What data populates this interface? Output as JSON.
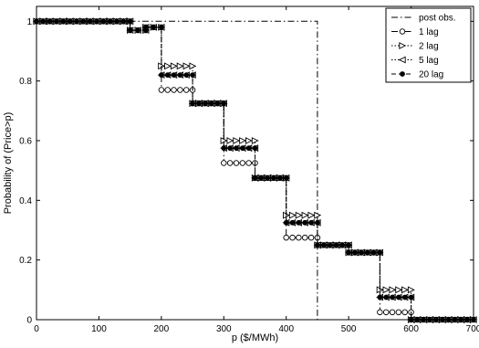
{
  "chart_data": {
    "type": "line",
    "title": "",
    "xlabel": "p ($/MWh)",
    "ylabel": "Probability of (Price>p)",
    "xlim": [
      0,
      700
    ],
    "ylim": [
      0,
      1.05
    ],
    "xticks": [
      0,
      100,
      200,
      300,
      400,
      500,
      600,
      700
    ],
    "yticks": [
      0,
      0.2,
      0.4,
      0.6,
      0.8,
      1
    ],
    "xtick_labels": [
      "0",
      "100",
      "200",
      "300",
      "400",
      "500",
      "600",
      "700"
    ],
    "ytick_labels": [
      "0",
      "0.2",
      "0.4",
      "0.6",
      "0.8",
      "1"
    ],
    "grid": false,
    "legend_position": "top-right",
    "series": [
      {
        "name": "post obs.",
        "style": "dash-dot",
        "marker": "none",
        "steps": [
          {
            "x0": 0,
            "x1": 450,
            "y": 1.0
          },
          {
            "x0": 450,
            "x1": 700,
            "y": 0.0
          }
        ]
      },
      {
        "name": "1 lag",
        "style": "dash-dot",
        "marker": "circle",
        "steps": [
          {
            "x0": 0,
            "x1": 150,
            "y": 1.0
          },
          {
            "x0": 150,
            "x1": 175,
            "y": 0.97
          },
          {
            "x0": 175,
            "x1": 200,
            "y": 0.98
          },
          {
            "x0": 200,
            "x1": 250,
            "y": 0.77
          },
          {
            "x0": 250,
            "x1": 300,
            "y": 0.725
          },
          {
            "x0": 300,
            "x1": 350,
            "y": 0.525
          },
          {
            "x0": 350,
            "x1": 400,
            "y": 0.475
          },
          {
            "x0": 400,
            "x1": 450,
            "y": 0.275
          },
          {
            "x0": 450,
            "x1": 500,
            "y": 0.25
          },
          {
            "x0": 500,
            "x1": 550,
            "y": 0.225
          },
          {
            "x0": 550,
            "x1": 600,
            "y": 0.025
          },
          {
            "x0": 600,
            "x1": 700,
            "y": 0.0
          }
        ]
      },
      {
        "name": "2 lag",
        "style": "dotted",
        "marker": "triangle-right",
        "steps": [
          {
            "x0": 0,
            "x1": 150,
            "y": 1.0
          },
          {
            "x0": 150,
            "x1": 175,
            "y": 0.97
          },
          {
            "x0": 175,
            "x1": 200,
            "y": 0.98
          },
          {
            "x0": 200,
            "x1": 250,
            "y": 0.85
          },
          {
            "x0": 250,
            "x1": 300,
            "y": 0.725
          },
          {
            "x0": 300,
            "x1": 350,
            "y": 0.6
          },
          {
            "x0": 350,
            "x1": 400,
            "y": 0.475
          },
          {
            "x0": 400,
            "x1": 450,
            "y": 0.35
          },
          {
            "x0": 450,
            "x1": 500,
            "y": 0.25
          },
          {
            "x0": 500,
            "x1": 550,
            "y": 0.225
          },
          {
            "x0": 550,
            "x1": 600,
            "y": 0.1
          },
          {
            "x0": 600,
            "x1": 700,
            "y": 0.0
          }
        ]
      },
      {
        "name": "5 lag",
        "style": "dotted",
        "marker": "triangle-left",
        "steps": [
          {
            "x0": 0,
            "x1": 150,
            "y": 1.0
          },
          {
            "x0": 150,
            "x1": 175,
            "y": 0.97
          },
          {
            "x0": 175,
            "x1": 200,
            "y": 0.98
          },
          {
            "x0": 200,
            "x1": 250,
            "y": 0.82
          },
          {
            "x0": 250,
            "x1": 300,
            "y": 0.725
          },
          {
            "x0": 300,
            "x1": 350,
            "y": 0.575
          },
          {
            "x0": 350,
            "x1": 400,
            "y": 0.475
          },
          {
            "x0": 400,
            "x1": 450,
            "y": 0.325
          },
          {
            "x0": 450,
            "x1": 500,
            "y": 0.25
          },
          {
            "x0": 500,
            "x1": 550,
            "y": 0.225
          },
          {
            "x0": 550,
            "x1": 600,
            "y": 0.075
          },
          {
            "x0": 600,
            "x1": 700,
            "y": 0.0
          }
        ]
      },
      {
        "name": "20 lag",
        "style": "dashed",
        "marker": "filled-circle",
        "steps": [
          {
            "x0": 0,
            "x1": 150,
            "y": 1.0
          },
          {
            "x0": 150,
            "x1": 175,
            "y": 0.97
          },
          {
            "x0": 175,
            "x1": 200,
            "y": 0.98
          },
          {
            "x0": 200,
            "x1": 250,
            "y": 0.82
          },
          {
            "x0": 250,
            "x1": 300,
            "y": 0.725
          },
          {
            "x0": 300,
            "x1": 350,
            "y": 0.575
          },
          {
            "x0": 350,
            "x1": 400,
            "y": 0.475
          },
          {
            "x0": 400,
            "x1": 450,
            "y": 0.325
          },
          {
            "x0": 450,
            "x1": 500,
            "y": 0.25
          },
          {
            "x0": 500,
            "x1": 550,
            "y": 0.225
          },
          {
            "x0": 550,
            "x1": 600,
            "y": 0.075
          },
          {
            "x0": 600,
            "x1": 700,
            "y": 0.0
          }
        ]
      }
    ]
  }
}
